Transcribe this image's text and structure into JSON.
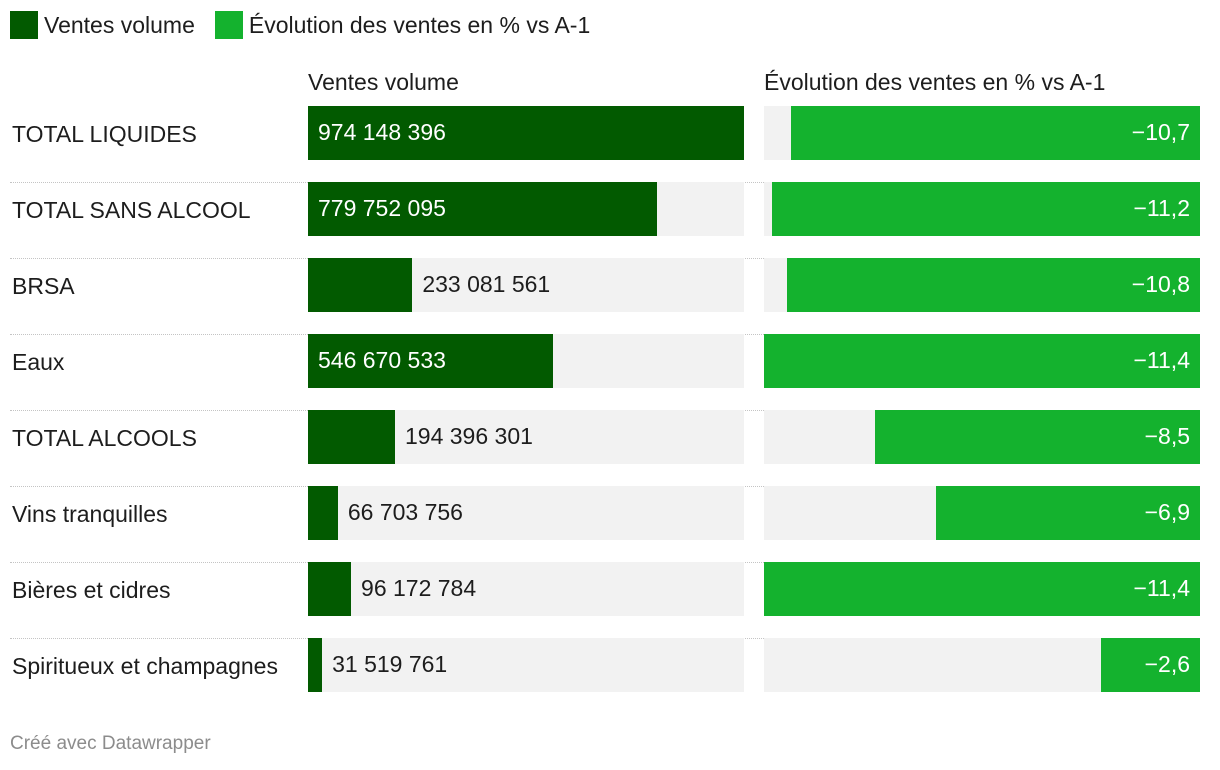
{
  "legend": {
    "items": [
      {
        "label": "Ventes volume",
        "color": "#025a00"
      },
      {
        "label": "Évolution des ventes en % vs A-1",
        "color": "#14b22e"
      }
    ]
  },
  "headers": {
    "volume": "Ventes volume",
    "evolution": "Évolution des ventes en % vs A-1"
  },
  "footer": {
    "text": "Créé avec Datawrapper"
  },
  "chart_data": {
    "type": "bar",
    "orientation": "horizontal",
    "categories": [
      "TOTAL LIQUIDES",
      "TOTAL SANS ALCOOL",
      "BRSA",
      "Eaux",
      "TOTAL ALCOOLS",
      "Vins tranquilles",
      "Bières et cidres",
      "Spiritueux et champagnes"
    ],
    "series": [
      {
        "name": "Ventes volume",
        "color": "#025a00",
        "values": [
          974148396,
          779752095,
          233081561,
          546670533,
          194396301,
          66703756,
          96172784,
          31519761
        ],
        "labels": [
          "974 148 396",
          "779 752 095",
          "233 081 561",
          "546 670 533",
          "194 396 301",
          "66 703 756",
          "96 172 784",
          "31 519 761"
        ],
        "xlim": [
          0,
          974148396
        ]
      },
      {
        "name": "Évolution des ventes en % vs A-1",
        "color": "#14b22e",
        "values": [
          -10.7,
          -11.2,
          -10.8,
          -11.4,
          -8.5,
          -6.9,
          -11.4,
          -2.6
        ],
        "labels": [
          "−10,7",
          "−11,2",
          "−10,8",
          "−11,4",
          "−8,5",
          "−6,9",
          "−11,4",
          "−2,6"
        ],
        "xlim": [
          -11.4,
          0
        ]
      }
    ],
    "track_color": "#f2f2f2",
    "grid": false
  }
}
